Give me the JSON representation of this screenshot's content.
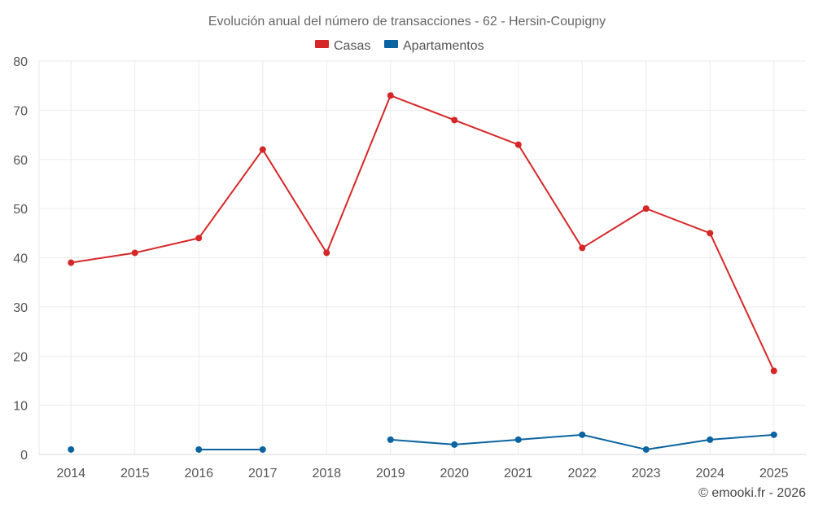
{
  "chart_data": {
    "type": "line",
    "title": "Evolución anual del número de transacciones - 62 - Hersin-Coupigny",
    "categories": [
      "2014",
      "2015",
      "2016",
      "2017",
      "2018",
      "2019",
      "2020",
      "2021",
      "2022",
      "2023",
      "2024",
      "2025"
    ],
    "ylim": [
      0,
      80
    ],
    "yticks": [
      0,
      10,
      20,
      30,
      40,
      50,
      60,
      70,
      80
    ],
    "y_tick_labels": [
      "0",
      "10",
      "20",
      "30",
      "40",
      "50",
      "60",
      "70",
      "80"
    ],
    "grid": true,
    "legend_position": "top-center",
    "series": [
      {
        "name": "Casas",
        "color": "#d62728",
        "values": [
          39,
          41,
          44,
          62,
          41,
          73,
          68,
          63,
          42,
          50,
          45,
          17
        ]
      },
      {
        "name": "Apartamentos",
        "color": "#0b64a0",
        "values": [
          1,
          null,
          1,
          1,
          null,
          3,
          2,
          3,
          4,
          1,
          3,
          4
        ]
      }
    ],
    "credit": "© emooki.fr - 2026"
  }
}
